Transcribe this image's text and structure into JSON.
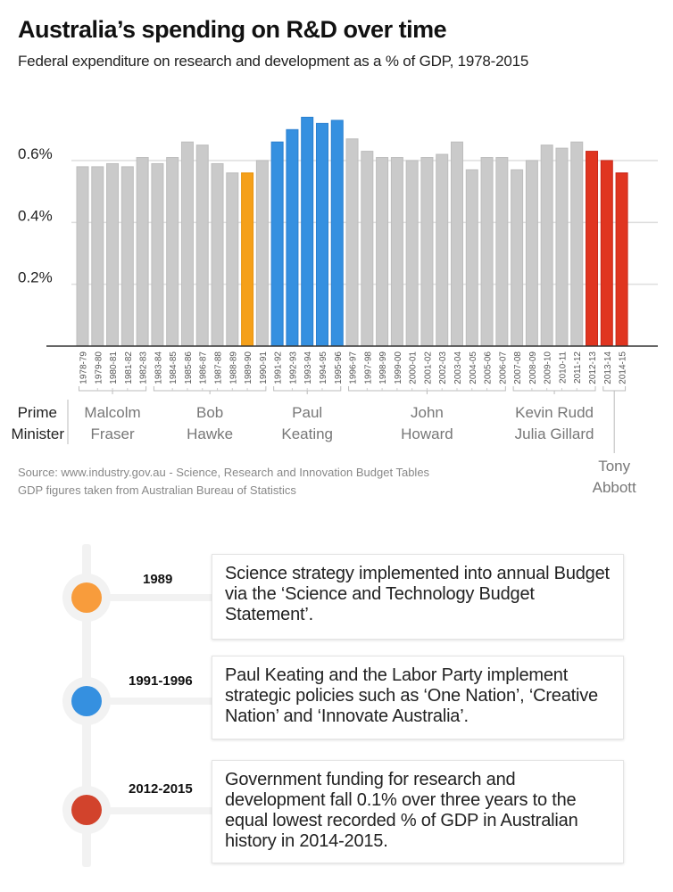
{
  "header": {
    "title": "Australia’s spending on R&D over time",
    "subtitle": "Federal expenditure on research and development as a % of GDP, 1978-2015"
  },
  "colors": {
    "default_bar": "#cacaca",
    "highlight_1989": "#f5a01a",
    "keating": "#3590e0",
    "abbott_era": "#e03520"
  },
  "chart_data": {
    "type": "bar",
    "title": "Australia’s spending on R&D over time",
    "subtitle": "Federal expenditure on research and development as a % of GDP, 1978-2015",
    "xlabel": "",
    "ylabel": "% of GDP",
    "ylim": [
      0,
      0.75
    ],
    "yticks": [
      0.2,
      0.4,
      0.6
    ],
    "ytick_labels": [
      "0.2%",
      "0.4%",
      "0.6%"
    ],
    "grid": true,
    "categories": [
      "1978-79",
      "1979-80",
      "1980-81",
      "1981-82",
      "1982-83",
      "1983-84",
      "1984-85",
      "1985-86",
      "1986-87",
      "1987-88",
      "1988-89",
      "1989-90",
      "1990-91",
      "1991-92",
      "1992-93",
      "1993-94",
      "1994-95",
      "1995-96",
      "1996-97",
      "1997-98",
      "1998-99",
      "1999-00",
      "2000-01",
      "2001-02",
      "2002-03",
      "2003-04",
      "2004-05",
      "2005-06",
      "2006-07",
      "2007-08",
      "2008-09",
      "2009-10",
      "2010-11",
      "2011-12",
      "2012-13",
      "2013-14",
      "2014-15"
    ],
    "values": [
      0.58,
      0.58,
      0.59,
      0.58,
      0.61,
      0.59,
      0.61,
      0.66,
      0.65,
      0.59,
      0.56,
      0.56,
      0.6,
      0.66,
      0.7,
      0.74,
      0.72,
      0.73,
      0.67,
      0.63,
      0.61,
      0.61,
      0.6,
      0.61,
      0.62,
      0.66,
      0.57,
      0.61,
      0.61,
      0.57,
      0.6,
      0.65,
      0.64,
      0.66,
      0.63,
      0.6,
      0.56
    ],
    "bar_color_keys": [
      "default_bar",
      "default_bar",
      "default_bar",
      "default_bar",
      "default_bar",
      "default_bar",
      "default_bar",
      "default_bar",
      "default_bar",
      "default_bar",
      "default_bar",
      "highlight_1989",
      "default_bar",
      "keating",
      "keating",
      "keating",
      "keating",
      "keating",
      "default_bar",
      "default_bar",
      "default_bar",
      "default_bar",
      "default_bar",
      "default_bar",
      "default_bar",
      "default_bar",
      "default_bar",
      "default_bar",
      "default_bar",
      "default_bar",
      "default_bar",
      "default_bar",
      "default_bar",
      "default_bar",
      "abbott_era",
      "abbott_era",
      "abbott_era"
    ],
    "annotation_label": [
      "Prime",
      "Minister"
    ],
    "prime_ministers": [
      {
        "name": [
          "Malcolm",
          "Fraser"
        ],
        "from": 0,
        "to": 4
      },
      {
        "name": [
          "Bob",
          "Hawke"
        ],
        "from": 5,
        "to": 12
      },
      {
        "name": [
          "Paul",
          "Keating"
        ],
        "from": 13,
        "to": 17
      },
      {
        "name": [
          "John",
          "Howard"
        ],
        "from": 18,
        "to": 28
      },
      {
        "name": [
          "Kevin Rudd",
          "Julia Gillard"
        ],
        "from": 29,
        "to": 34
      },
      {
        "name": [
          "Tony",
          "Abbott"
        ],
        "from": 35,
        "to": 36
      }
    ]
  },
  "source": {
    "line1": "Source: www.industry.gov.au - Science, Research and Innovation Budget Tables",
    "line2": "GDP figures taken from Australian Bureau of Statistics"
  },
  "timeline": [
    {
      "year": "1989",
      "color": "#f89c3c",
      "text": "Science strategy implemented into annual Budget via the ‘Science and Technology Budget Statement’."
    },
    {
      "year": "1991-1996",
      "color": "#3590e0",
      "text": "Paul Keating and the Labor Party implement strategic policies such as ‘One Nation’, ‘Creative Nation’ and ‘Innovate Australia’."
    },
    {
      "year": "2012-2015",
      "color": "#d2432c",
      "text": "Government funding for research and development fall 0.1% over three years to the equal lowest recorded % of GDP in Australian history in 2014-2015."
    }
  ]
}
